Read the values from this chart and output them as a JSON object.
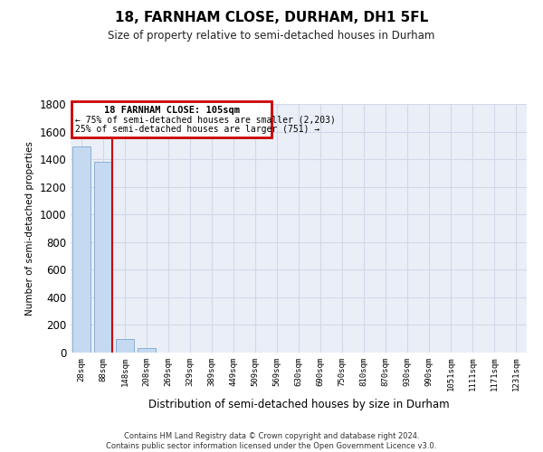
{
  "title": "18, FARNHAM CLOSE, DURHAM, DH1 5FL",
  "subtitle": "Size of property relative to semi-detached houses in Durham",
  "xlabel": "Distribution of semi-detached houses by size in Durham",
  "ylabel": "Number of semi-detached properties",
  "footer": "Contains HM Land Registry data © Crown copyright and database right 2024.\nContains public sector information licensed under the Open Government Licence v3.0.",
  "bar_color": "#c5d9f1",
  "bar_edge_color": "#8aafd4",
  "categories": [
    "28sqm",
    "88sqm",
    "148sqm",
    "208sqm",
    "269sqm",
    "329sqm",
    "389sqm",
    "449sqm",
    "509sqm",
    "569sqm",
    "630sqm",
    "690sqm",
    "750sqm",
    "810sqm",
    "870sqm",
    "930sqm",
    "990sqm",
    "1051sqm",
    "1111sqm",
    "1171sqm",
    "1231sqm"
  ],
  "values": [
    1490,
    1380,
    100,
    30,
    0,
    0,
    0,
    0,
    0,
    0,
    0,
    0,
    0,
    0,
    0,
    0,
    0,
    0,
    0,
    0,
    0
  ],
  "property_line_x": 1.43,
  "property_label": "18 FARNHAM CLOSE: 105sqm",
  "annotation_line1": "← 75% of semi-detached houses are smaller (2,203)",
  "annotation_line2": "25% of semi-detached houses are larger (751) →",
  "ylim": [
    0,
    1800
  ],
  "yticks": [
    0,
    200,
    400,
    600,
    800,
    1000,
    1200,
    1400,
    1600,
    1800
  ],
  "annotation_box_color": "#ffffff",
  "annotation_box_edge": "#cc0000",
  "vline_color": "#cc0000",
  "grid_color": "#d0d8e8",
  "background_color": "#eaeff7"
}
